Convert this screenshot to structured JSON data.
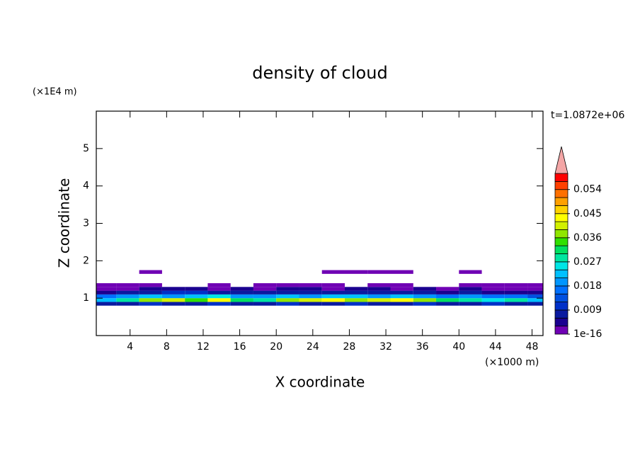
{
  "chart_data": {
    "type": "contour",
    "title": "density of cloud",
    "x_label": "X coordinate",
    "y_label": "Z coordinate",
    "x_unit": "(×1000 m)",
    "y_unit": "(×1E4 m)",
    "time_label": "t=1.0872e+06",
    "xlim": [
      0.3,
      49.2
    ],
    "ylim": [
      0,
      6
    ],
    "xticks": [
      4,
      8,
      12,
      16,
      20,
      24,
      28,
      32,
      36,
      40,
      44,
      48
    ],
    "yticks": [
      1,
      2,
      3,
      4,
      5
    ],
    "x": [
      1.25,
      3.75,
      6.25,
      8.75,
      11.25,
      13.75,
      16.25,
      18.75,
      21.25,
      23.75,
      26.25,
      28.75,
      31.25,
      33.75,
      36.25,
      38.75,
      41.25,
      43.75,
      46.25,
      48.75
    ],
    "z": [
      0.85,
      0.95,
      1.05,
      1.15,
      1.25,
      1.35,
      1.7
    ],
    "cell_width": 2.5,
    "cell_height": 0.1,
    "field": [
      [
        0.006,
        0.008,
        0.009,
        0.008,
        0.008,
        0.009,
        0.008,
        0.008,
        0.009,
        0.008,
        0.008,
        0.009,
        0.008,
        0.008,
        0.009,
        0.008,
        0.008,
        0.009,
        0.008,
        0.007
      ],
      [
        0.021,
        0.027,
        0.036,
        0.04,
        0.033,
        0.042,
        0.03,
        0.027,
        0.036,
        0.039,
        0.042,
        0.036,
        0.039,
        0.042,
        0.036,
        0.03,
        0.027,
        0.024,
        0.027,
        0.021
      ],
      [
        0.015,
        0.018,
        0.021,
        0.018,
        0.021,
        0.024,
        0.018,
        0.018,
        0.021,
        0.018,
        0.021,
        0.021,
        0.018,
        0.021,
        0.018,
        0.015,
        0.018,
        0.015,
        0.015,
        0.012
      ],
      [
        0.004,
        0.006,
        0.008,
        0.009,
        0.01,
        0.008,
        0.006,
        0.007,
        0.006,
        0.008,
        0.007,
        0.006,
        0.006,
        0.007,
        0.006,
        0.005,
        0.006,
        0.005,
        0.005,
        0.004
      ],
      [
        0.002,
        0.002,
        0.003,
        0.004,
        0.003,
        0.002,
        0.003,
        0.002,
        0.003,
        0.003,
        0.002,
        0.003,
        0.003,
        0.002,
        0.003,
        0.002,
        0.003,
        0.002,
        0.002,
        0.002
      ],
      [
        0.001,
        0.001,
        0.001,
        null,
        null,
        0.001,
        null,
        0.001,
        0.001,
        0.001,
        0.001,
        null,
        0.001,
        0.001,
        null,
        null,
        0.001,
        0.001,
        0.001,
        0.001
      ],
      [
        null,
        null,
        0.001,
        null,
        null,
        null,
        null,
        null,
        null,
        null,
        0.001,
        0.001,
        0.001,
        0.001,
        null,
        null,
        0.001,
        null,
        null,
        null
      ]
    ],
    "colorbar_lim": [
      0,
      0.06
    ],
    "colorbar_ticks": [
      {
        "value": 1e-16,
        "label": "1e-16"
      },
      0.009,
      0.018,
      0.027,
      0.036,
      0.045,
      0.054
    ],
    "colors": [
      "#6f00b4",
      "#1a0090",
      "#0a1aa0",
      "#0030c8",
      "#0050e0",
      "#0070ff",
      "#0096ff",
      "#00c0ff",
      "#00e6e6",
      "#00e6a0",
      "#00e060",
      "#30e000",
      "#90e600",
      "#d2f000",
      "#ffff00",
      "#ffd200",
      "#ffa000",
      "#ff7000",
      "#ff4000",
      "#ff0000"
    ],
    "extend_color": "#f4a6a6"
  }
}
